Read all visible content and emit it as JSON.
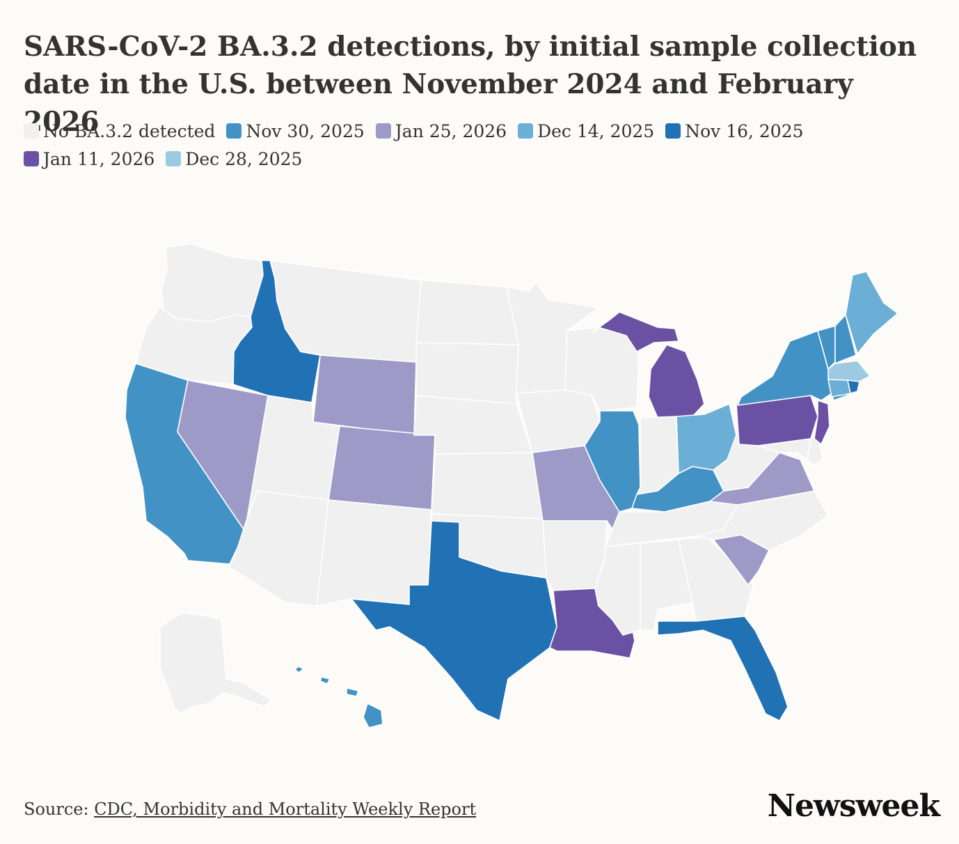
{
  "title": "SARS-CoV-2 BA.3.2 detections, by initial sample collection date in the U.S. between November 2024 and February 2026",
  "legend": [
    {
      "key": "none",
      "label": "No BA.3.2 detected",
      "color": "#f0f0f1"
    },
    {
      "key": "nov30",
      "label": "Nov 30, 2025",
      "color": "#4292c6"
    },
    {
      "key": "jan25",
      "label": "Jan 25, 2026",
      "color": "#9e9ac8"
    },
    {
      "key": "dec14",
      "label": "Dec 14, 2025",
      "color": "#6baed6"
    },
    {
      "key": "nov16",
      "label": "Nov 16, 2025",
      "color": "#2171b5"
    },
    {
      "key": "jan11",
      "label": "Jan 11, 2026",
      "color": "#6a51a3"
    },
    {
      "key": "dec28",
      "label": "Dec 28, 2025",
      "color": "#9ecae1"
    }
  ],
  "state_categories": {
    "Washington": "none",
    "Oregon": "none",
    "California": "nov30",
    "Nevada": "jan25",
    "Idaho": "nov16",
    "Montana": "none",
    "Wyoming": "jan25",
    "Utah": "none",
    "Arizona": "none",
    "Colorado": "jan25",
    "New Mexico": "none",
    "North Dakota": "none",
    "South Dakota": "none",
    "Nebraska": "none",
    "Kansas": "none",
    "Oklahoma": "none",
    "Texas": "nov16",
    "Minnesota": "none",
    "Iowa": "none",
    "Missouri": "jan25",
    "Arkansas": "none",
    "Louisiana": "jan11",
    "Wisconsin": "none",
    "Illinois": "nov30",
    "Michigan": "jan11",
    "Indiana": "none",
    "Ohio": "dec14",
    "Kentucky": "nov30",
    "Tennessee": "none",
    "Mississippi": "none",
    "Alabama": "none",
    "Georgia": "none",
    "Florida": "nov16",
    "South Carolina": "jan25",
    "North Carolina": "none",
    "Virginia": "jan25",
    "West Virginia": "none",
    "Maryland": "none",
    "Delaware": "none",
    "New Jersey": "jan11",
    "Pennsylvania": "jan11",
    "New York": "nov30",
    "Connecticut": "dec14",
    "Rhode Island": "nov16",
    "Massachusetts": "dec28",
    "Vermont": "nov30",
    "New Hampshire": "nov30",
    "Maine": "dec14",
    "Alaska": "none",
    "Hawaii": "nov30"
  },
  "footer": {
    "source_prefix": "Source: ",
    "source_link": "CDC, Morbidity and Mortality Weekly Report"
  },
  "brand": "Newsweek"
}
